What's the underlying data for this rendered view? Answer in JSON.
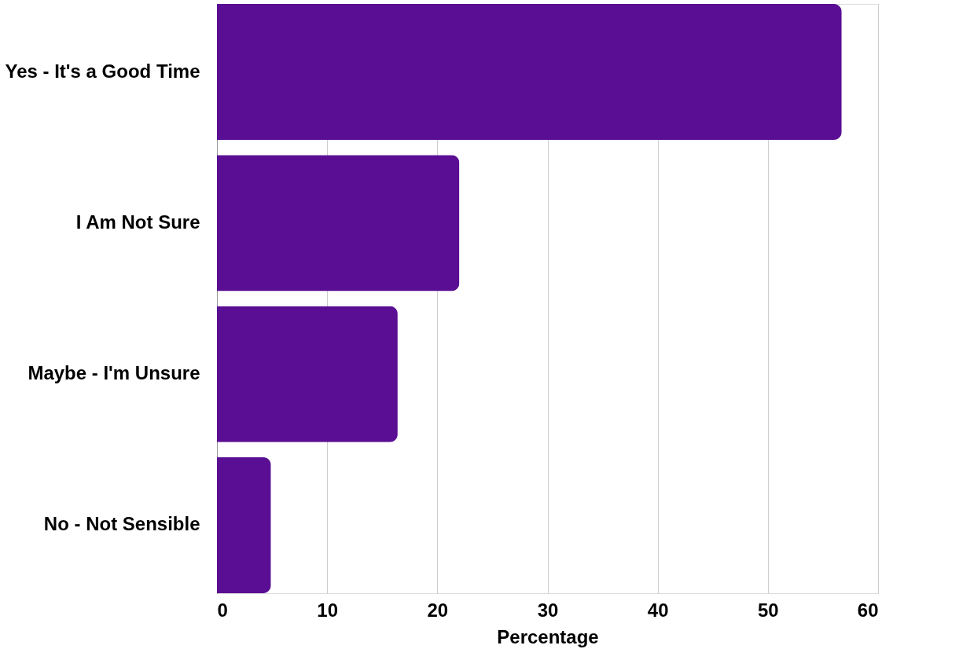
{
  "chart_data": {
    "type": "bar",
    "orientation": "horizontal",
    "xlabel": "Percentage",
    "categories": [
      "Yes - It's a Good Time",
      "I Am Not Sure",
      "Maybe - I'm Unsure",
      "No - Not Sensible"
    ],
    "values": [
      56.7,
      22.0,
      16.4,
      4.9
    ],
    "color": "#5a0e93",
    "xlim": [
      0,
      60
    ],
    "xticks": [
      0,
      10,
      20,
      30,
      40,
      50,
      60
    ],
    "grid": "x"
  }
}
